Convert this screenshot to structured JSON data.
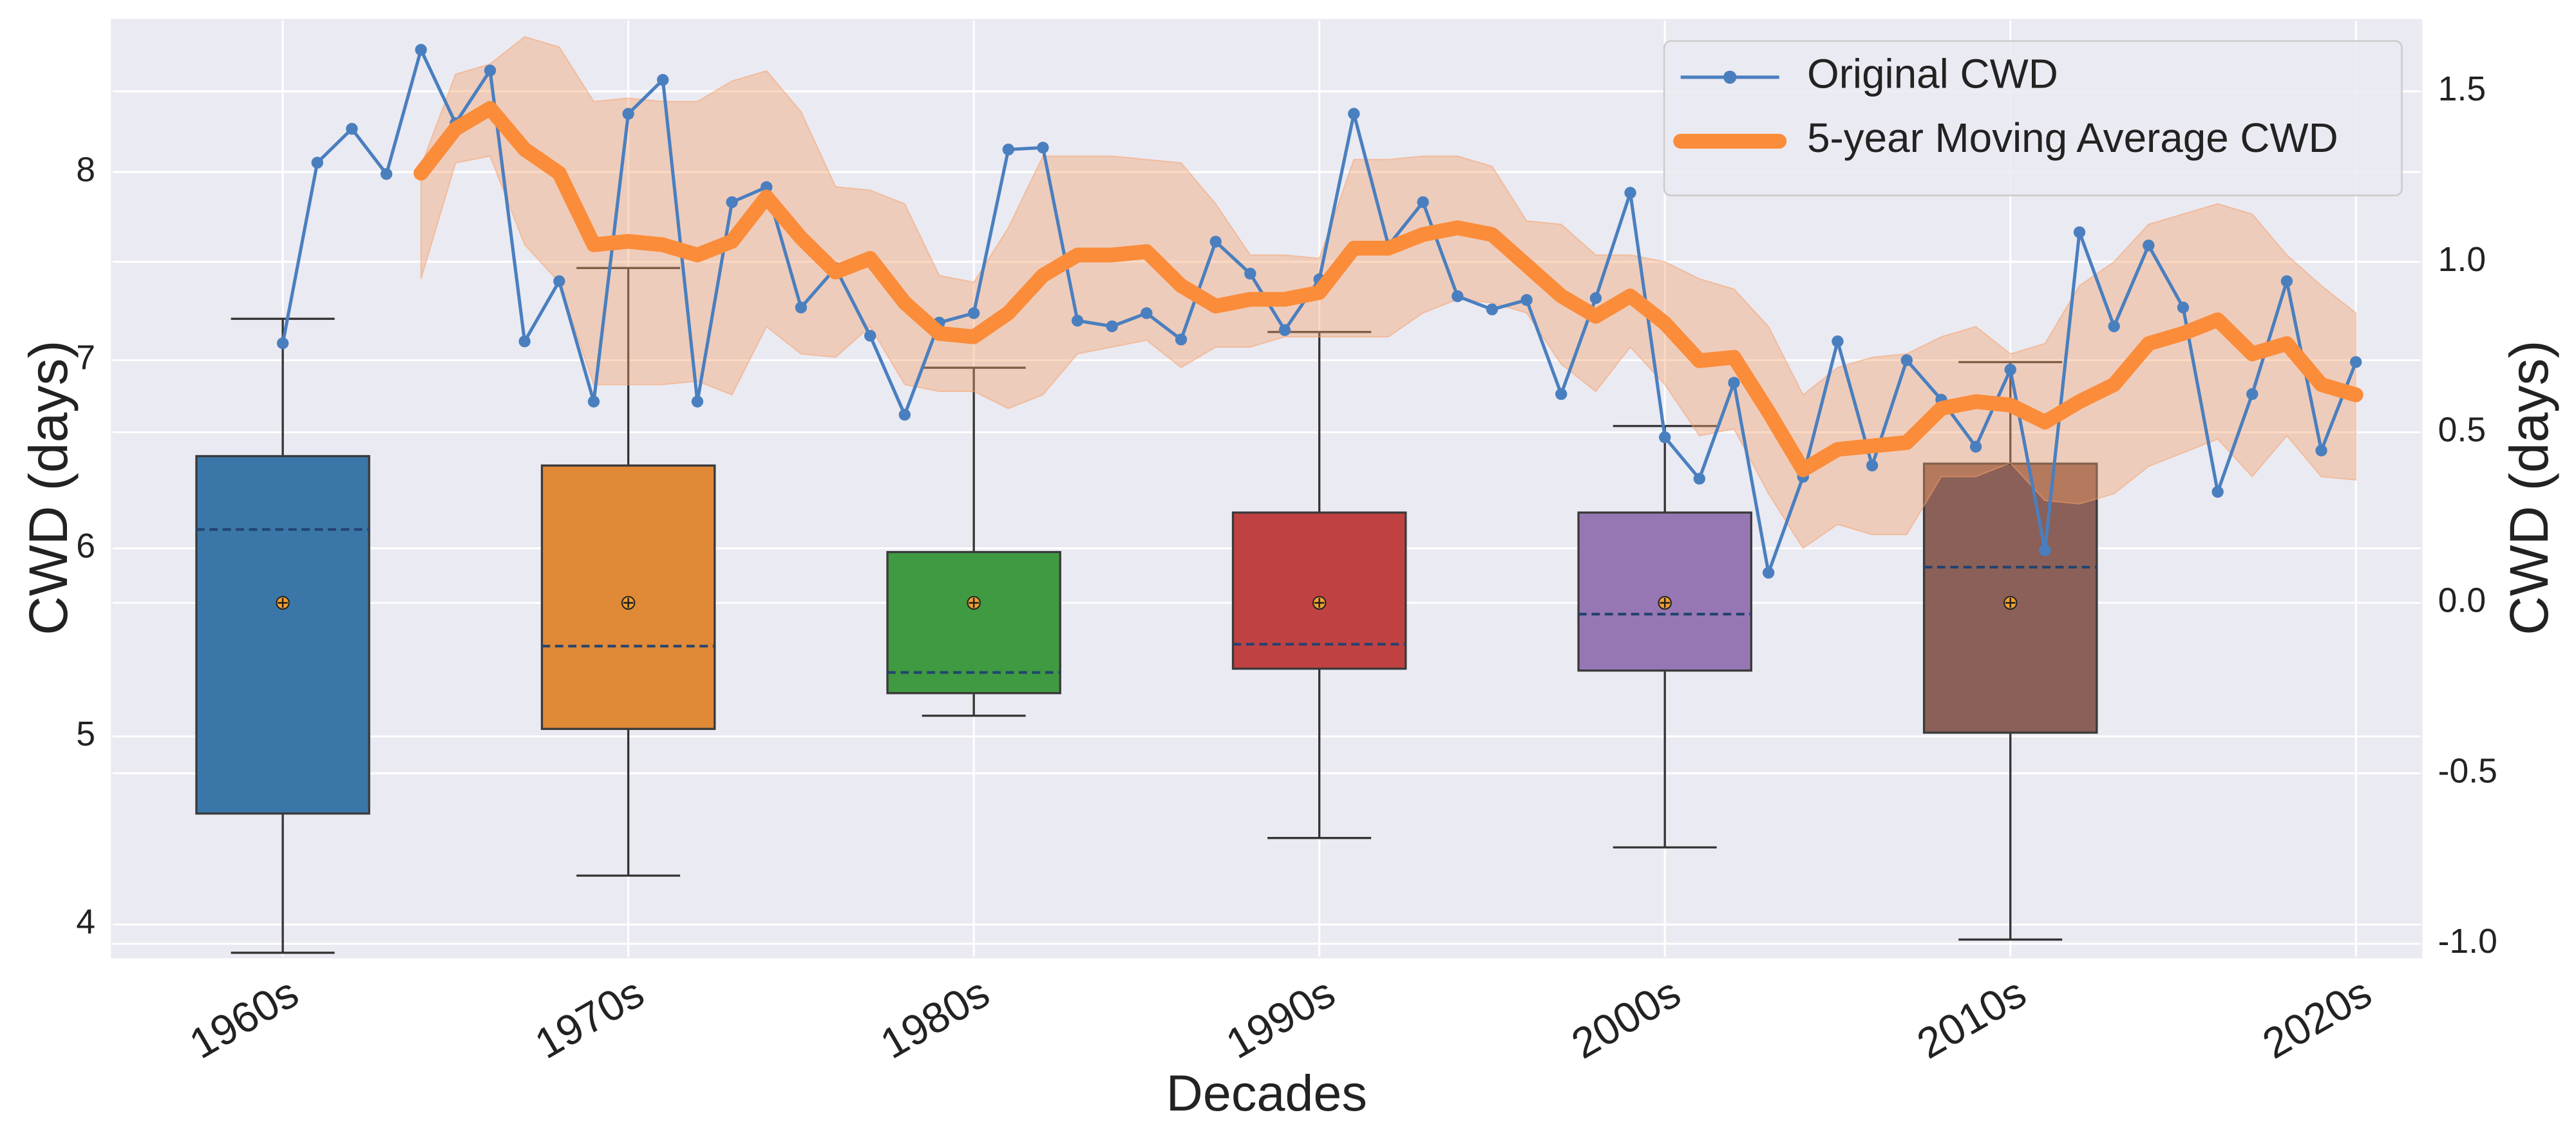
{
  "chart_data": {
    "type": "box",
    "xlabel": "Decades",
    "ylabel": "CWD (days)",
    "y2label": "CWD (days)",
    "xlim": [
      1955.05,
      2021.9
    ],
    "xticks": [
      {
        "value": 1960,
        "label": "1960s"
      },
      {
        "value": 1970,
        "label": "1970s"
      },
      {
        "value": 1980,
        "label": "1980s"
      },
      {
        "value": 1990,
        "label": "1990s"
      },
      {
        "value": 2000,
        "label": "2000s"
      },
      {
        "value": 2010,
        "label": "2010s"
      },
      {
        "value": 2020,
        "label": "2020s"
      }
    ],
    "ylim": [
      3.825,
      8.81
    ],
    "yticks": [
      4,
      5,
      6,
      7,
      8
    ],
    "y2lim": [
      -1.04,
      1.71
    ],
    "y2ticks": [
      {
        "value": -1,
        "label": "-1.0"
      },
      -0.5,
      {
        "value": 0,
        "label": "0.0"
      },
      0.5,
      {
        "value": 1,
        "label": "1.0"
      },
      1.5
    ],
    "grid": true,
    "legend": "upper right",
    "boxes": [
      {
        "x": 1960,
        "color": "#3a77a8",
        "low": 3.85,
        "q1": 4.59,
        "median": 6.1,
        "q3": 6.49,
        "high": 7.22,
        "mean": 5.71
      },
      {
        "x": 1970,
        "color": "#e08937",
        "low": 4.26,
        "q1": 5.04,
        "median": 5.48,
        "q3": 6.44,
        "high": 7.49,
        "mean": 5.71
      },
      {
        "x": 1980,
        "color": "#3f9a41",
        "low": 5.11,
        "q1": 5.23,
        "median": 5.34,
        "q3": 5.98,
        "high": 6.96,
        "mean": 5.71
      },
      {
        "x": 1990,
        "color": "#c04142",
        "low": 4.46,
        "q1": 5.36,
        "median": 5.49,
        "q3": 6.19,
        "high": 7.15,
        "mean": 5.71
      },
      {
        "x": 2000,
        "color": "#9677b3",
        "low": 4.41,
        "q1": 5.35,
        "median": 5.65,
        "q3": 6.19,
        "high": 6.65,
        "mean": 5.71
      },
      {
        "x": 2010,
        "color": "#8a6058",
        "low": 3.92,
        "q1": 5.02,
        "median": 5.9,
        "q3": 6.45,
        "high": 6.99,
        "mean": 5.71
      }
    ],
    "series": [
      {
        "name": "Original CWD",
        "color": "#4a7fbf",
        "x": [
          1960,
          1961,
          1962,
          1963,
          1964,
          1965,
          1966,
          1967,
          1968,
          1969,
          1970,
          1971,
          1972,
          1973,
          1974,
          1975,
          1976,
          1977,
          1978,
          1979,
          1980,
          1981,
          1982,
          1983,
          1984,
          1985,
          1986,
          1987,
          1988,
          1989,
          1990,
          1991,
          1992,
          1993,
          1994,
          1995,
          1996,
          1997,
          1998,
          1999,
          2000,
          2001,
          2002,
          2003,
          2004,
          2005,
          2006,
          2007,
          2008,
          2009,
          2010,
          2011,
          2012,
          2013,
          2014,
          2015,
          2016,
          2017,
          2018,
          2019,
          2020
        ],
        "values": [
          7.09,
          8.05,
          8.23,
          7.99,
          8.65,
          8.26,
          8.54,
          7.1,
          7.42,
          6.78,
          8.31,
          8.49,
          6.78,
          7.84,
          7.92,
          7.28,
          7.49,
          7.13,
          6.71,
          7.2,
          7.25,
          8.12,
          8.13,
          7.21,
          7.18,
          7.25,
          7.11,
          7.63,
          7.46,
          7.16,
          7.43,
          8.31,
          7.61,
          7.84,
          7.34,
          7.27,
          7.32,
          6.82,
          7.33,
          7.89,
          6.59,
          6.37,
          6.88,
          5.87,
          6.38,
          7.1,
          6.44,
          7.0,
          6.79,
          6.54,
          6.95,
          5.99,
          7.68,
          7.18,
          7.61,
          7.28,
          6.3,
          6.82,
          7.42,
          6.52,
          6.99
        ]
      },
      {
        "name": "5-year Moving Average CWD",
        "color": "#fb8c3a",
        "band_color": "#f5a06a",
        "axis": "y2",
        "x": [
          1964,
          1965,
          1966,
          1967,
          1968,
          1969,
          1970,
          1971,
          1972,
          1973,
          1974,
          1975,
          1976,
          1977,
          1978,
          1979,
          1980,
          1981,
          1982,
          1983,
          1984,
          1985,
          1986,
          1987,
          1988,
          1989,
          1990,
          1991,
          1992,
          1993,
          1994,
          1995,
          1996,
          1997,
          1998,
          1999,
          2000,
          2001,
          2002,
          2003,
          2004,
          2005,
          2006,
          2007,
          2008,
          2009,
          2010,
          2011,
          2012,
          2013,
          2014,
          2015,
          2016,
          2017,
          2018,
          2019,
          2020
        ],
        "values": [
          1.26,
          1.39,
          1.45,
          1.33,
          1.26,
          1.05,
          1.06,
          1.05,
          1.02,
          1.06,
          1.19,
          1.07,
          0.97,
          1.01,
          0.88,
          0.79,
          0.78,
          0.85,
          0.96,
          1.02,
          1.02,
          1.03,
          0.93,
          0.87,
          0.89,
          0.89,
          0.91,
          1.04,
          1.04,
          1.08,
          1.1,
          1.08,
          0.99,
          0.9,
          0.84,
          0.9,
          0.82,
          0.71,
          0.72,
          0.56,
          0.39,
          0.45,
          0.46,
          0.47,
          0.57,
          0.59,
          0.58,
          0.53,
          0.59,
          0.64,
          0.76,
          0.79,
          0.83,
          0.73,
          0.76,
          0.64,
          0.61
        ],
        "upper": [
          1.28,
          1.55,
          1.58,
          1.66,
          1.63,
          1.47,
          1.48,
          1.47,
          1.47,
          1.53,
          1.56,
          1.44,
          1.22,
          1.21,
          1.17,
          0.96,
          0.94,
          1.1,
          1.31,
          1.31,
          1.31,
          1.3,
          1.29,
          1.17,
          1.02,
          1.02,
          1.01,
          1.3,
          1.3,
          1.31,
          1.31,
          1.28,
          1.12,
          1.11,
          1.02,
          1.02,
          1.0,
          0.95,
          0.92,
          0.81,
          0.61,
          0.69,
          0.72,
          0.73,
          0.78,
          0.81,
          0.73,
          0.76,
          0.93,
          1.0,
          1.11,
          1.14,
          1.17,
          1.14,
          1.02,
          0.93,
          0.85
        ],
        "lower": [
          0.95,
          1.29,
          1.31,
          1.05,
          0.94,
          0.64,
          0.64,
          0.64,
          0.65,
          0.61,
          0.81,
          0.73,
          0.72,
          0.81,
          0.64,
          0.62,
          0.62,
          0.57,
          0.61,
          0.73,
          0.75,
          0.77,
          0.69,
          0.75,
          0.75,
          0.78,
          0.78,
          0.78,
          0.78,
          0.85,
          0.89,
          0.88,
          0.85,
          0.7,
          0.62,
          0.75,
          0.64,
          0.49,
          0.51,
          0.32,
          0.16,
          0.23,
          0.2,
          0.2,
          0.37,
          0.37,
          0.41,
          0.3,
          0.29,
          0.32,
          0.4,
          0.44,
          0.48,
          0.37,
          0.49,
          0.37,
          0.36
        ]
      }
    ]
  }
}
